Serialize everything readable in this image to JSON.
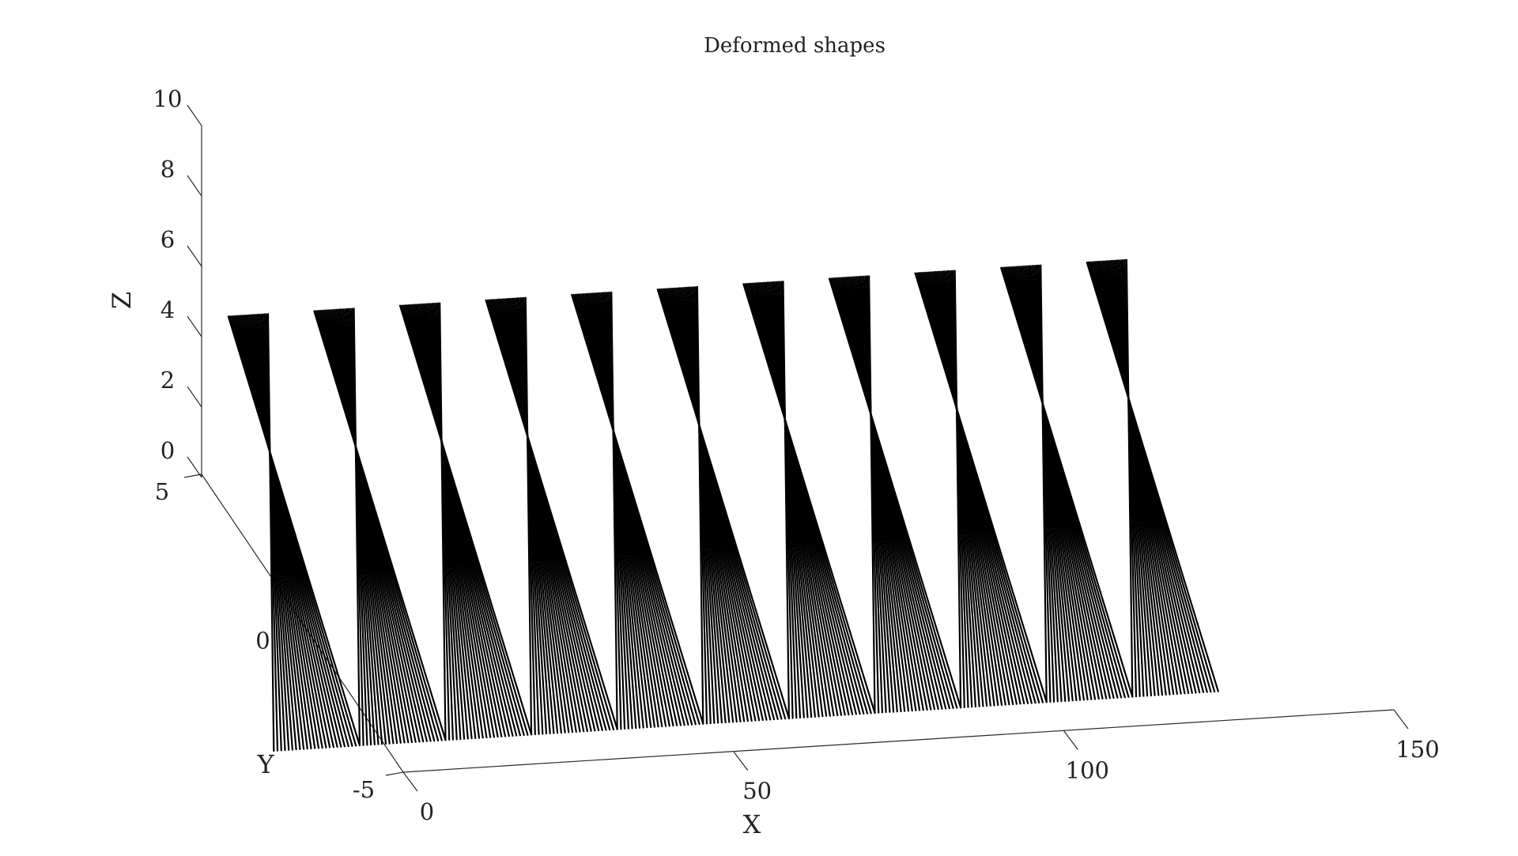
{
  "chart_data": {
    "type": "line",
    "projection": "3d",
    "title": "Deformed shapes",
    "xlabel": "X",
    "ylabel": "Y",
    "zlabel": "Z",
    "xlim": [
      0,
      150
    ],
    "ylim": [
      -5,
      5
    ],
    "zlim": [
      0,
      10
    ],
    "x_ticks": [
      "0",
      "50",
      "100",
      "150"
    ],
    "y_ticks": [
      "-5",
      "0",
      "5"
    ],
    "z_ticks": [
      "0",
      "2",
      "4",
      "6",
      "8",
      "10"
    ],
    "grid": false,
    "line_color": "#000000",
    "series": [
      {
        "description": "fan of straight deformed line shapes radiating from pivot points along X",
        "pivots": [
          {
            "x": 0,
            "y": 2.5,
            "z": 0.0
          },
          {
            "x": 13,
            "y": 2.5,
            "z": 0.0
          },
          {
            "x": 26,
            "y": 2.5,
            "z": 0.0
          },
          {
            "x": 39,
            "y": 2.5,
            "z": 0.0
          },
          {
            "x": 52,
            "y": 2.5,
            "z": 0.0
          },
          {
            "x": 65,
            "y": 2.5,
            "z": 0.0
          },
          {
            "x": 78,
            "y": 2.5,
            "z": 0.0
          },
          {
            "x": 91,
            "y": 2.5,
            "z": 0.0
          },
          {
            "x": 104,
            "y": 2.5,
            "z": 0.0
          },
          {
            "x": 117,
            "y": 2.5,
            "z": 0.0
          },
          {
            "x": 130,
            "y": 2.5,
            "z": 0.0
          }
        ],
        "lines_per_pivot": 24,
        "z_range": [
          -3.8,
          3.8
        ],
        "y_range": [
          -1.5,
          4.5
        ]
      }
    ]
  }
}
